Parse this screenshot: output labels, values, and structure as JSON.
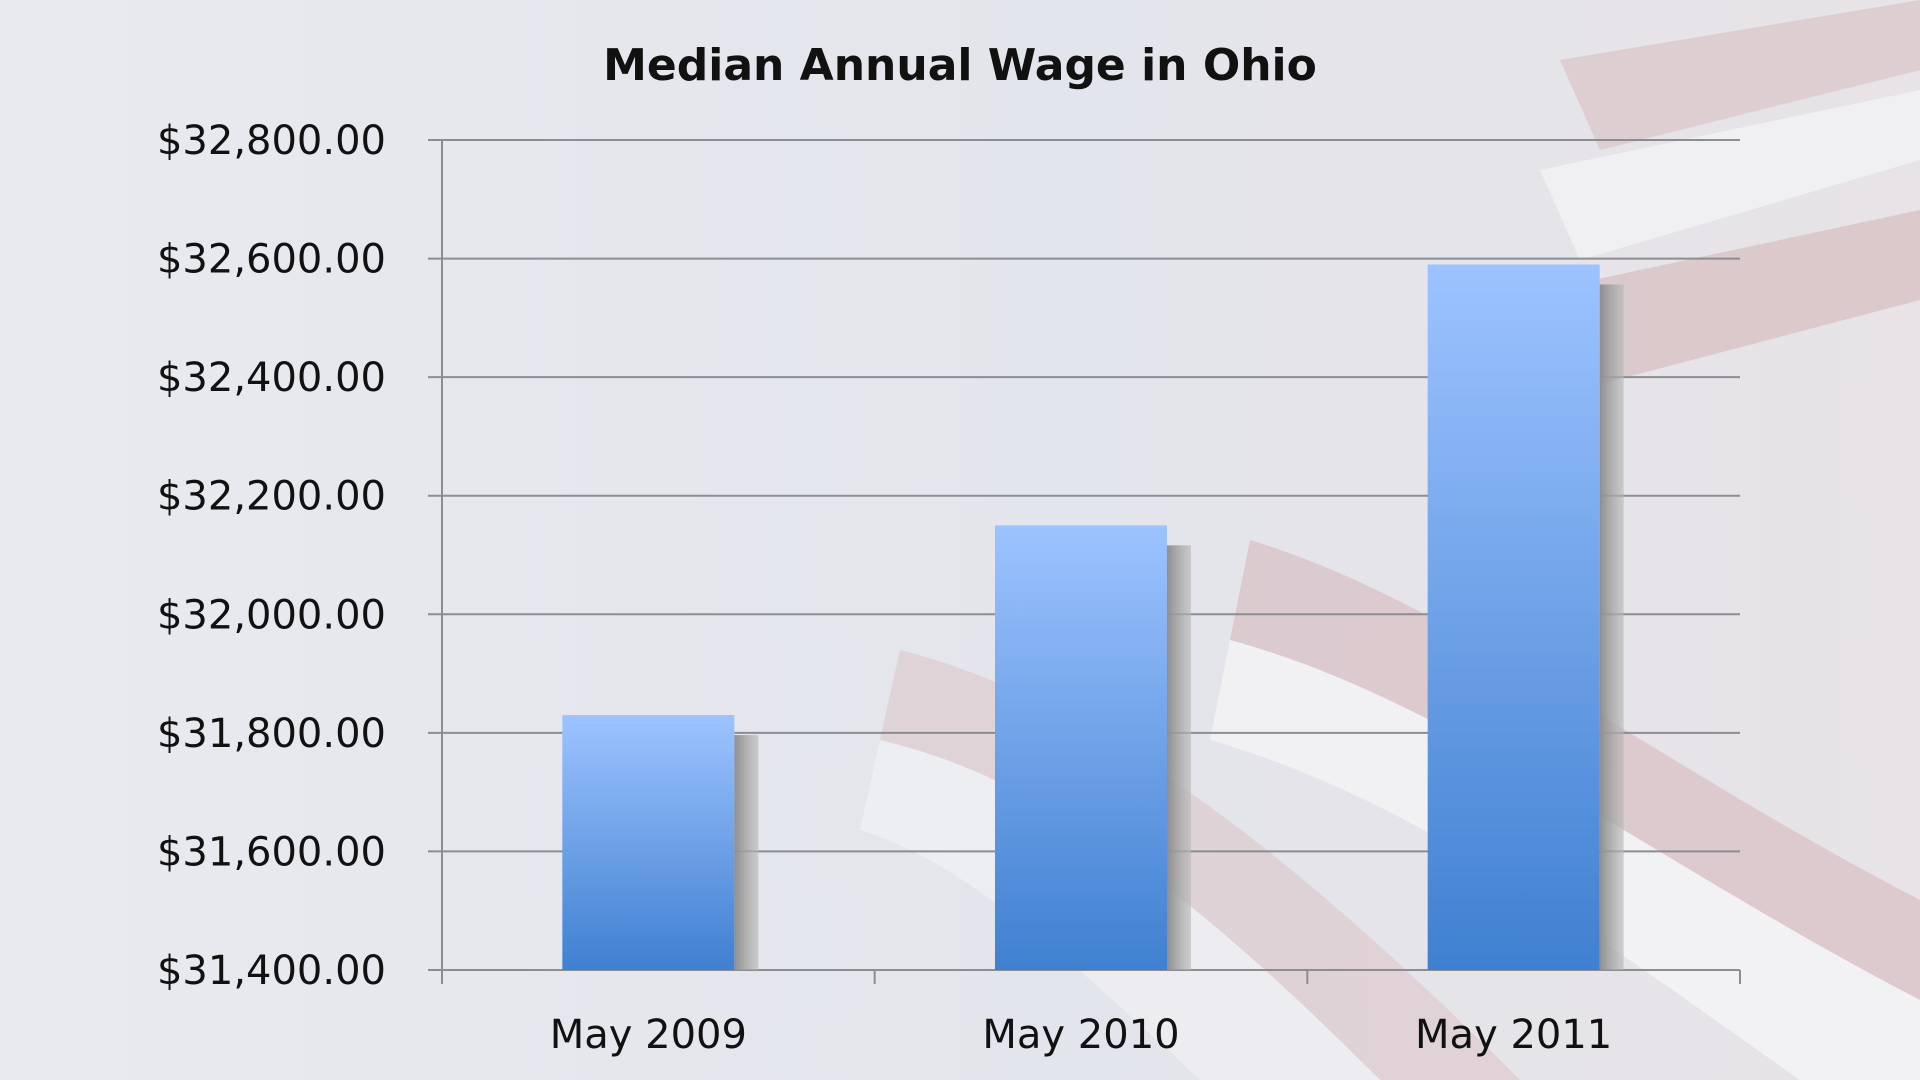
{
  "chart_data": {
    "type": "bar",
    "title": "Median Annual Wage in Ohio",
    "categories": [
      "May 2009",
      "May 2010",
      "May 2011"
    ],
    "values": [
      31830,
      32150,
      32590
    ],
    "ylim": [
      31400,
      32800
    ],
    "yticks": [
      "$31,400.00",
      "$31,600.00",
      "$31,800.00",
      "$32,000.00",
      "$32,200.00",
      "$32,400.00",
      "$32,600.00",
      "$32,800.00"
    ],
    "ytick_values": [
      31400,
      31600,
      31800,
      32000,
      32200,
      32400,
      32600,
      32800
    ],
    "xlabel": "",
    "ylabel": "",
    "grid": true,
    "legend": "none",
    "colors": {
      "bar_top": "#9dc3ff",
      "bar_bottom": "#3f80d0",
      "grid": "#8a8d92",
      "shadow": "#9a9a9a",
      "background": "#e6e8ee",
      "flag_red": "#c9a2a4",
      "flag_white": "#f1f1f4"
    }
  }
}
